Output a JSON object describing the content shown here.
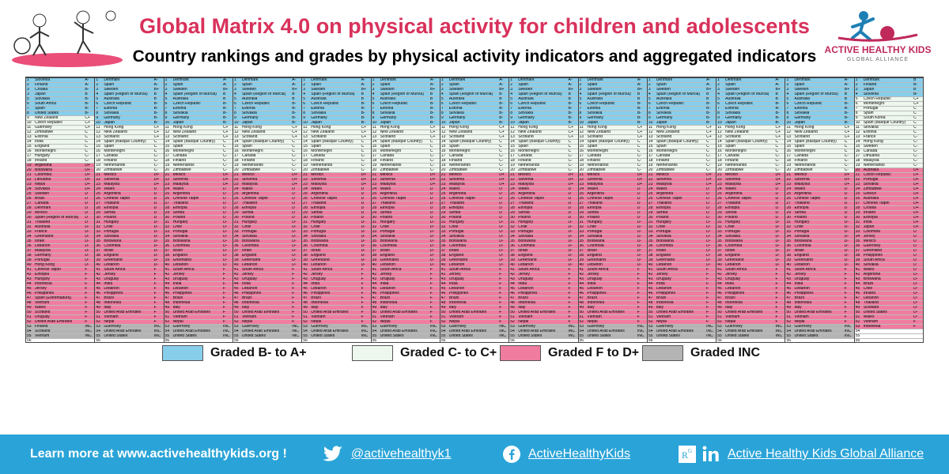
{
  "header": {
    "title": "Global Matrix 4.0 on physical activity for children and adolescents",
    "subtitle": "Country rankings and grades by physical activity indicators and aggregated indicators"
  },
  "logo": {
    "name": "ACTIVE HEALTHY KIDS",
    "sub": "GLOBAL ALLIANCE"
  },
  "matrix": {
    "columns": [
      "Overall Physical Activity",
      "Organised Sports and Physical Activity",
      "Active Play",
      "Active Transportation",
      "Sedentary Behaviour",
      "Physical Fitness",
      "Family and Peers",
      "School",
      "Community and Environment",
      "Government",
      "Behavioral average",
      "Sources of influence average",
      "Overall average"
    ],
    "row_count": 57,
    "band_boundaries": {
      "b_to_c": 11,
      "c_to_f": 21,
      "f_to_inc": 53
    },
    "sample_rows": {
      "Overall Physical Activity": [
        [
          "1",
          "Slovenia",
          "A-"
        ],
        [
          "2",
          "Finland",
          "A-"
        ],
        [
          "3",
          "Croatia",
          "B-"
        ],
        [
          "3",
          "Japan",
          "B"
        ],
        [
          "5",
          "Slovakia",
          "B-"
        ],
        [
          "6",
          "South Africa",
          "B-"
        ],
        [
          "7",
          "Spain",
          "B-"
        ],
        [
          "8",
          "United States",
          "B-"
        ],
        [
          "9",
          "New Zealand",
          "C+"
        ],
        [
          "10",
          "Czech Republic",
          "C+"
        ],
        [
          "11",
          "Guernsey",
          "C+"
        ],
        [
          "12",
          "Zimbabwe",
          "C"
        ],
        [
          "13",
          "Estonia",
          "C"
        ],
        [
          "14",
          "India",
          "C"
        ],
        [
          "15",
          "England",
          "C"
        ],
        [
          "16",
          "Montenegro",
          "C"
        ],
        [
          "17",
          "Hungary",
          "C-"
        ],
        [
          "18",
          "Ireland",
          "C-"
        ],
        [
          "19",
          "Argentina",
          "D+"
        ],
        [
          "20",
          "Botswana",
          "D+"
        ],
        [
          "21",
          "Colombia",
          "D+"
        ],
        [
          "22",
          "Lithuania",
          "D+"
        ],
        [
          "23",
          "Nepal",
          "D+"
        ],
        [
          "24",
          "Slovakia",
          "D+"
        ],
        [
          "25",
          "Sweden",
          "D"
        ],
        [
          "26",
          "Brazil",
          "D"
        ],
        [
          "27",
          "Canada",
          "D"
        ],
        [
          "28",
          "Denmark",
          "D"
        ],
        [
          "29",
          "Mexico",
          "D"
        ],
        [
          "30",
          "Spain (Region of Murcia)",
          "D"
        ],
        [
          "31",
          "Thailand",
          "D"
        ],
        [
          "32",
          "Australia",
          "D-"
        ],
        [
          "33",
          "France",
          "D-"
        ],
        [
          "34",
          "Greenland",
          "D-"
        ],
        [
          "35",
          "Israel",
          "D-"
        ],
        [
          "36",
          "Lebanon",
          "D-"
        ],
        [
          "37",
          "Malaysia",
          "D-"
        ],
        [
          "38",
          "Germany",
          "D-"
        ],
        [
          "39",
          "Portugal",
          "D-"
        ],
        [
          "40",
          "Hong Kong",
          "D-"
        ],
        [
          "41",
          "Chinese Taipei",
          "F"
        ],
        [
          "42",
          "Ethiopia",
          "F"
        ],
        [
          "43",
          "Hungary",
          "F"
        ],
        [
          "44",
          "Indonesia",
          "F"
        ],
        [
          "45",
          "Jersey",
          "F"
        ],
        [
          "46",
          "Philippines",
          "F"
        ],
        [
          "47",
          "Spain (Extremadura)",
          "F"
        ],
        [
          "48",
          "Vietnam",
          "F"
        ],
        [
          "49",
          "Wales",
          "F"
        ],
        [
          "50",
          "Scotland",
          "F"
        ],
        [
          "51",
          "Uruguay",
          "F"
        ],
        [
          "52",
          "United Arab Emirates",
          "F"
        ],
        [
          "53",
          "Finland",
          "INC"
        ],
        [
          "54",
          "Scotland",
          "INC"
        ],
        [
          "55",
          "Vietnam",
          "INC"
        ],
        [
          "56",
          "",
          ""
        ],
        [
          "57",
          "",
          ""
        ]
      ],
      "Overall average": [
        [
          "1",
          "Denmark",
          "B"
        ],
        [
          "2",
          "Finland",
          "B-"
        ],
        [
          "3",
          "Japan",
          "B"
        ],
        [
          "4",
          "Slovenia",
          "B-"
        ],
        [
          "5",
          "Czech Republic",
          "C+"
        ],
        [
          "6",
          "Montenegro",
          "C+"
        ],
        [
          "7",
          "Portugal",
          "C"
        ],
        [
          "8",
          "Spain",
          "C"
        ],
        [
          "9",
          "South Korea",
          "C"
        ],
        [
          "10",
          "Spain (Basque Country)",
          "C"
        ],
        [
          "11",
          "Slovakia",
          "C"
        ],
        [
          "12",
          "Estonia",
          "C"
        ],
        [
          "13",
          "France",
          "C-"
        ],
        [
          "14",
          "Hong Kong",
          "C-"
        ],
        [
          "15",
          "Sweden",
          "C-"
        ],
        [
          "16",
          "Canada",
          "C-"
        ],
        [
          "17",
          "Lithuania",
          "C-"
        ],
        [
          "18",
          "Malaysia",
          "C-"
        ],
        [
          "19",
          "Netherlands",
          "C-"
        ],
        [
          "20",
          "Australia",
          "D+"
        ],
        [
          "21",
          "Czech Republic",
          "D+"
        ],
        [
          "22",
          "Portugal",
          "D+"
        ],
        [
          "23",
          "Slovakia",
          "D+"
        ],
        [
          "24",
          "Zimbabwe",
          "D+"
        ],
        [
          "25",
          "Greece",
          "D+"
        ],
        [
          "26",
          "Australia",
          "D+"
        ],
        [
          "27",
          "Chinese Taipei",
          "D+"
        ],
        [
          "28",
          "Croatia",
          "D+"
        ],
        [
          "29",
          "Ireland",
          "D+"
        ],
        [
          "30",
          "Ethiopia",
          "D+"
        ],
        [
          "31",
          "India",
          "D+"
        ],
        [
          "32",
          "Japan",
          "D+"
        ],
        [
          "33",
          "Colombia",
          "D"
        ],
        [
          "34",
          "Jersey",
          "D"
        ],
        [
          "35",
          "Mexico",
          "D"
        ],
        [
          "36",
          "Guernsey",
          "D"
        ],
        [
          "37",
          "Greenland",
          "D"
        ],
        [
          "38",
          "Philippines",
          "D"
        ],
        [
          "39",
          "South Africa",
          "D"
        ],
        [
          "40",
          "Slovakia",
          "D"
        ],
        [
          "41",
          "Wales",
          "D"
        ],
        [
          "42",
          "Argentina",
          "D-"
        ],
        [
          "43",
          "Botswana",
          "D-"
        ],
        [
          "44",
          "Brazil",
          "D-"
        ],
        [
          "45",
          "Chile",
          "D-"
        ],
        [
          "46",
          "Ireland",
          "D-"
        ],
        [
          "47",
          "Lebanon",
          "D-"
        ],
        [
          "48",
          "Thailand",
          "D-"
        ],
        [
          "49",
          "Scotland",
          "D-"
        ],
        [
          "50",
          "United States",
          "D-"
        ],
        [
          "51",
          "Wales",
          "D-"
        ],
        [
          "52",
          "Vietnam",
          "F"
        ],
        [
          "53",
          "Indonesia",
          "F"
        ],
        [
          "54",
          "",
          ""
        ],
        [
          "55",
          "",
          ""
        ],
        [
          "56",
          "",
          ""
        ],
        [
          "57",
          "",
          ""
        ]
      ]
    },
    "other_column_sample": [
      [
        "1",
        "Denmark",
        "A-"
      ],
      [
        "2",
        "Spain",
        "A-"
      ],
      [
        "3",
        "Sweden",
        "B+"
      ],
      [
        "4",
        "Spain (Region of Murcia)",
        "B"
      ],
      [
        "5",
        "Australia",
        "B"
      ],
      [
        "6",
        "Czech Republic",
        "B-"
      ],
      [
        "7",
        "Estonia",
        "B-"
      ],
      [
        "8",
        "Slovakia",
        "B-"
      ],
      [
        "9",
        "Germany",
        "B-"
      ],
      [
        "10",
        "Japan",
        "B-"
      ],
      [
        "11",
        "Hong Kong",
        "C+"
      ],
      [
        "12",
        "New Zealand",
        "C+"
      ],
      [
        "13",
        "Scotland",
        "C+"
      ],
      [
        "14",
        "Spain (Basque Country)",
        "C"
      ],
      [
        "15",
        "Spain",
        "C"
      ],
      [
        "16",
        "Montenegro",
        "C"
      ],
      [
        "17",
        "Canada",
        "C-"
      ],
      [
        "18",
        "Finland",
        "C-"
      ],
      [
        "19",
        "Netherlands",
        "C-"
      ],
      [
        "20",
        "Zimbabwe",
        "C-"
      ],
      [
        "21",
        "Mexico",
        "D+"
      ],
      [
        "22",
        "Slovenia",
        "D+"
      ],
      [
        "23",
        "Malaysia",
        "D+"
      ],
      [
        "24",
        "Wales",
        "D"
      ],
      [
        "25",
        "Argentina",
        "D"
      ],
      [
        "26",
        "Chinese Taipei",
        "D"
      ],
      [
        "27",
        "Thailand",
        "D"
      ],
      [
        "28",
        "Ethiopia",
        "D"
      ],
      [
        "29",
        "Serbia",
        "D"
      ],
      [
        "30",
        "Poland",
        "D"
      ],
      [
        "31",
        "Hungary",
        "D-"
      ],
      [
        "32",
        "Chile",
        "D-"
      ],
      [
        "33",
        "Portugal",
        "D-"
      ],
      [
        "34",
        "Slovakia",
        "D-"
      ],
      [
        "35",
        "Botswana",
        "D-"
      ],
      [
        "36",
        "Colombia",
        "D-"
      ],
      [
        "37",
        "Israel",
        "D-"
      ],
      [
        "38",
        "England",
        "D-"
      ],
      [
        "39",
        "Greenland",
        "D-"
      ],
      [
        "40",
        "Lebanon",
        "D-"
      ],
      [
        "41",
        "South Africa",
        "F"
      ],
      [
        "42",
        "Jersey",
        "F"
      ],
      [
        "43",
        "Uruguay",
        "F"
      ],
      [
        "44",
        "India",
        "F"
      ],
      [
        "45",
        "Lebanon",
        "F"
      ],
      [
        "46",
        "Philippines",
        "F"
      ],
      [
        "47",
        "Brazil",
        "F"
      ],
      [
        "48",
        "Indonesia",
        "F"
      ],
      [
        "49",
        "Italy",
        "F"
      ],
      [
        "50",
        "United Arab Emirates",
        "F"
      ],
      [
        "51",
        "Vietnam",
        "F"
      ],
      [
        "52",
        "Nepal",
        "F"
      ],
      [
        "53",
        "Guernsey",
        "INC"
      ],
      [
        "54",
        "United Arab Emirates",
        "INC"
      ],
      [
        "55",
        "United States",
        "INC"
      ],
      [
        "56",
        "",
        ""
      ],
      [
        "57",
        "",
        ""
      ]
    ]
  },
  "legend": [
    {
      "label": "Graded B- to A+",
      "color": "#87ceeb"
    },
    {
      "label": "Graded C- to C+",
      "color": "#eef7ee"
    },
    {
      "label": "Graded F to D+",
      "color": "#f07ca0"
    },
    {
      "label": "Graded INC",
      "color": "#b4b4b4"
    }
  ],
  "footer": {
    "learn_more": "Learn more at www.activehealthykids.org !",
    "twitter": "@activehealthyk1",
    "facebook": "ActiveHealthyKids",
    "alliance": "Active Healthy Kids Global Alliance",
    "twitter_icon": "twitter-icon",
    "facebook_icon": "facebook-icon",
    "researchgate_icon": "researchgate-icon",
    "linkedin_icon": "linkedin-icon"
  }
}
